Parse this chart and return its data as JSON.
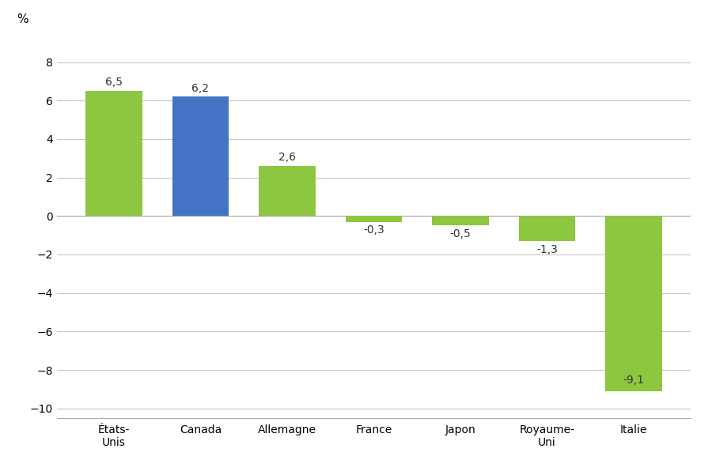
{
  "categories": [
    "États-\nUnis",
    "Canada",
    "Allemagne",
    "France",
    "Japon",
    "Royaume-\nUni",
    "Italie"
  ],
  "values": [
    6.5,
    6.2,
    2.6,
    -0.3,
    -0.5,
    -1.3,
    -9.1
  ],
  "bar_colors": [
    "#8dc63f",
    "#4472c4",
    "#8dc63f",
    "#8dc63f",
    "#8dc63f",
    "#8dc63f",
    "#8dc63f"
  ],
  "labels": [
    "6,5",
    "6,2",
    "2,6",
    "-0,3",
    "-0,5",
    "-1,3",
    "-9,1"
  ],
  "ylim": [
    -10.5,
    9.5
  ],
  "yticks": [
    -10,
    -8,
    -6,
    -4,
    -2,
    0,
    2,
    4,
    6,
    8
  ],
  "ylabel": "%",
  "background_color": "#ffffff",
  "grid_color": "#c8c8c8",
  "label_fontsize": 10,
  "tick_fontsize": 10,
  "ylabel_fontsize": 11
}
